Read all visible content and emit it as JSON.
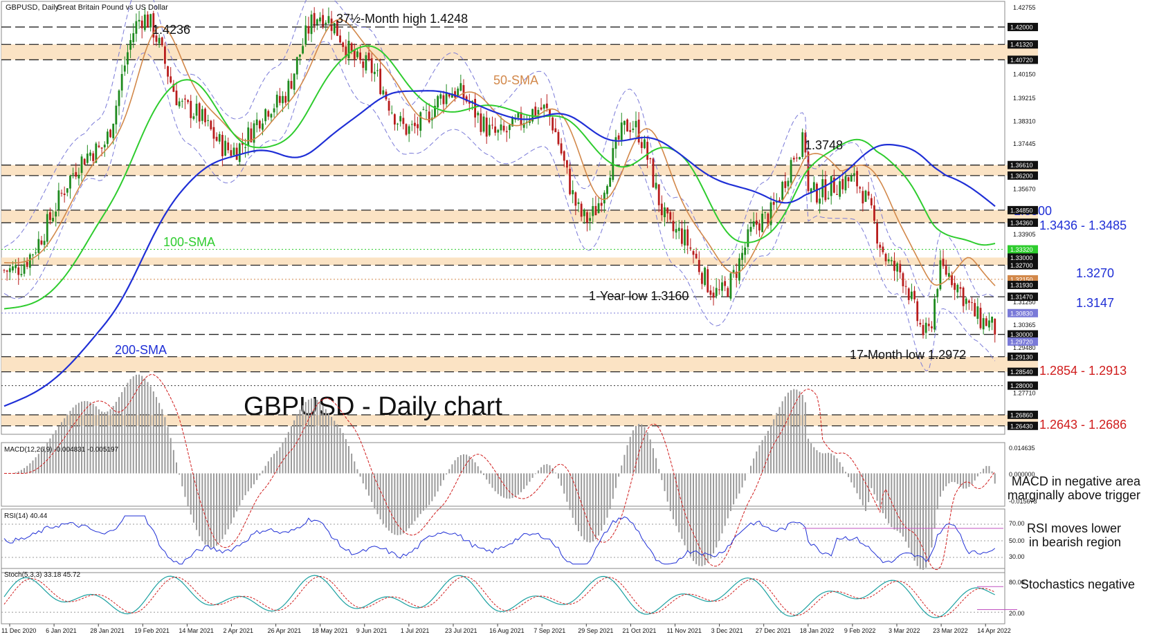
{
  "header": {
    "symbol": "GBPUSD, Daily:",
    "description": "Great Britain Pound vs US Dollar"
  },
  "colors": {
    "sma50": "#d2884a",
    "sma100": "#2ecc2e",
    "sma200": "#1f2fd6",
    "candle_up": "#1e8a1e",
    "candle_down": "#b81c1c",
    "bollinger": "#7a7ad8",
    "zone_fill": "#fbe3c4",
    "label_blue": "#1f2fd6",
    "label_red": "#d01c1c",
    "macd_signal": "#d01c1c",
    "rsi": "#1f2fd6",
    "stoch_k": "#1aa0a0",
    "stoch_d": "#d01c1c",
    "guide": "#c050c0"
  },
  "chart_data": [
    {
      "type": "candlestick",
      "title": "GBPUSD - Daily chart",
      "ylim": [
        1.261,
        1.43
      ],
      "x_dates": [
        "11 Dec 2020",
        "6 Jan 2021",
        "28 Jan 2021",
        "19 Feb 2021",
        "14 Mar 2021",
        "2 Apr 2021",
        "26 Apr 2021",
        "18 May 2021",
        "9 Jun 2021",
        "1 Jul 2021",
        "23 Jul 2021",
        "16 Aug 2021",
        "7 Sep 2021",
        "29 Sep 2021",
        "21 Oct 2021",
        "11 Nov 2021",
        "3 Dec 2021",
        "27 Dec 2021",
        "18 Jan 2022",
        "9 Feb 2022",
        "3 Mar 2022",
        "23 Mar 2022",
        "14 Apr 2022"
      ],
      "price_axis_ticks": [
        "1.42755",
        "1.40150",
        "1.39215",
        "1.38310",
        "1.37445",
        "1.35670",
        "1.33905",
        "1.31250",
        "1.30365",
        "1.29480",
        "1.27710"
      ],
      "highlighted_levels": [
        "1.42000",
        "1.41320",
        "1.40720",
        "1.36610",
        "1.36200",
        "1.34850",
        "1.34360",
        "1.33320",
        "1.33000",
        "1.32700",
        "1.32150",
        "1.31930",
        "1.31470",
        "1.30830",
        "1.30000",
        "1.29720",
        "1.29130",
        "1.28540",
        "1.28000",
        "1.26860",
        "1.26430"
      ],
      "zones": [
        {
          "from": 1.4072,
          "to": 1.4132
        },
        {
          "from": 1.362,
          "to": 1.3661
        },
        {
          "from": 1.3436,
          "to": 1.3485
        },
        {
          "from": 1.327,
          "to": 1.33
        },
        {
          "from": 1.2854,
          "to": 1.2913
        },
        {
          "from": 1.2643,
          "to": 1.2686
        }
      ],
      "dashed_levels": [
        1.42,
        1.4132,
        1.4072,
        1.3661,
        1.362,
        1.3485,
        1.3436,
        1.327,
        1.3147,
        1.3,
        1.2913,
        1.2854,
        1.2686,
        1.2643
      ],
      "dotted_levels": [
        {
          "value": 1.3332,
          "color": "#2ecc2e"
        },
        {
          "value": 1.3215,
          "color": "#d2884a"
        },
        {
          "value": 1.3083,
          "color": "#7a7ad8"
        },
        {
          "value": 1.28,
          "color": "#333333"
        }
      ],
      "key_prices": [
        {
          "date": "11 Dec 2020",
          "value": 1.325
        },
        {
          "date": "28 Jan 2021",
          "value": 1.372
        },
        {
          "date": "19 Feb 2021",
          "value": 1.4236
        },
        {
          "date": "14 Mar 2021",
          "value": 1.388
        },
        {
          "date": "2 Apr 2021",
          "value": 1.372
        },
        {
          "date": "26 Apr 2021",
          "value": 1.39
        },
        {
          "date": "18 May 2021",
          "value": 1.4248
        },
        {
          "date": "9 Jun 2021",
          "value": 1.405
        },
        {
          "date": "1 Jul 2021",
          "value": 1.38
        },
        {
          "date": "23 Jul 2021",
          "value": 1.395
        },
        {
          "date": "16 Aug 2021",
          "value": 1.378
        },
        {
          "date": "7 Sep 2021",
          "value": 1.388
        },
        {
          "date": "29 Sep 2021",
          "value": 1.345
        },
        {
          "date": "21 Oct 2021",
          "value": 1.382
        },
        {
          "date": "11 Nov 2021",
          "value": 1.34
        },
        {
          "date": "3 Dec 2021",
          "value": 1.316
        },
        {
          "date": "27 Dec 2021",
          "value": 1.345
        },
        {
          "date": "5 Jan 2022",
          "value": 1.3748
        },
        {
          "date": "18 Jan 2022",
          "value": 1.355
        },
        {
          "date": "9 Feb 2022",
          "value": 1.36
        },
        {
          "date": "3 Mar 2022",
          "value": 1.325
        },
        {
          "date": "15 Mar 2022",
          "value": 1.3
        },
        {
          "date": "23 Mar 2022",
          "value": 1.325
        },
        {
          "date": "14 Apr 2022",
          "value": 1.305
        },
        {
          "date": "20 Apr 2022",
          "value": 1.302
        }
      ],
      "moving_averages": [
        {
          "name": "50-SMA",
          "start": 1.328,
          "end": 1.319
        },
        {
          "name": "100-SMA",
          "start": 1.31,
          "end": 1.3355
        },
        {
          "name": "200-SMA",
          "start": 1.272,
          "end": 1.35
        }
      ],
      "annotations": [
        {
          "text": "1.4236"
        },
        {
          "text": "37½-Month high 1.4248"
        },
        {
          "text": "50-SMA"
        },
        {
          "text": "100-SMA"
        },
        {
          "text": "200-SMA"
        },
        {
          "text": "1.3748"
        },
        {
          "text": "1-Year low 1.3160"
        },
        {
          "text": "17-Month low 1.2972"
        },
        {
          "text": "1.3500"
        },
        {
          "text": "1.3436 - 1.3485"
        },
        {
          "text": "1.3270"
        },
        {
          "text": "1.3147"
        },
        {
          "text": "1.2854 - 1.2913"
        },
        {
          "text": "1.2643 - 1.2686"
        }
      ]
    },
    {
      "type": "bar",
      "indicator": "MACD",
      "label": "MACD(12,26,9) -0.004831 -0.005197",
      "axis_ticks": [
        "0.014635",
        "0.000000",
        "-0.015673"
      ],
      "ylim": [
        -0.0157,
        0.0146
      ],
      "annotation": [
        "MACD in negative area",
        "marginally above trigger"
      ]
    },
    {
      "type": "line",
      "indicator": "RSI",
      "label": "RSI(14) 40.44",
      "axis_ticks": [
        "70.00",
        "50.00",
        "30.00"
      ],
      "ylim": [
        15,
        85
      ],
      "guide_level": 65,
      "annotation": [
        "RSI moves lower",
        "in bearish region"
      ]
    },
    {
      "type": "line",
      "indicator": "Stochastic",
      "label": "Stoch(5,3,3) 33.18 45.72",
      "axis_ticks": [
        "80.00",
        "20.00"
      ],
      "ylim": [
        0,
        100
      ],
      "annotation": [
        "Stochastics negative"
      ]
    }
  ]
}
